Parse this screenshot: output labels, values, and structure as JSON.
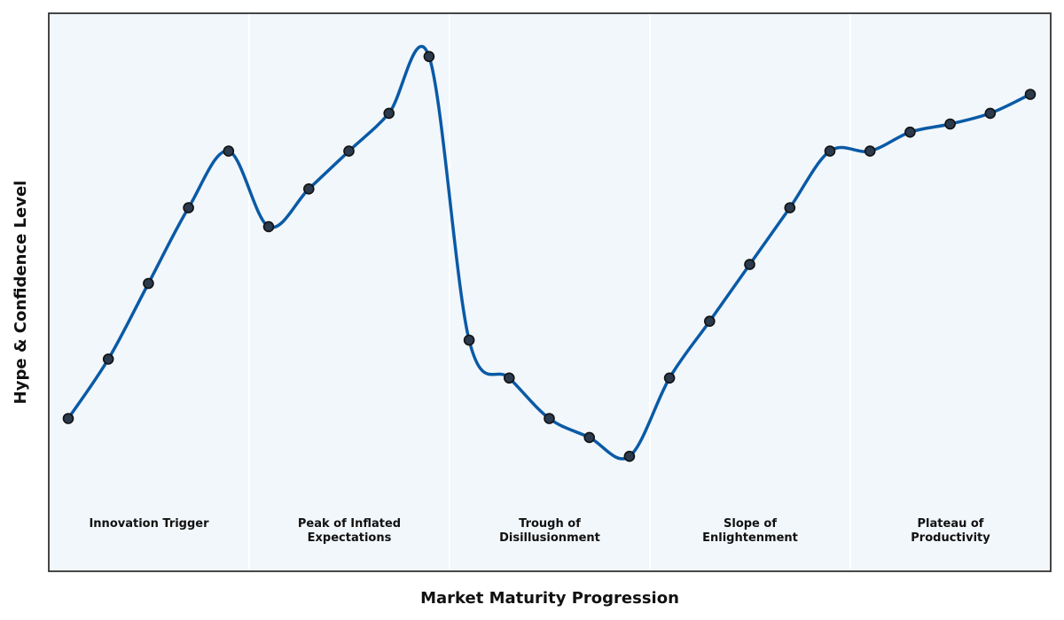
{
  "chart_data": {
    "type": "line",
    "xlabel": "Market Maturity Progression",
    "ylabel": "Hype & Confidence Level",
    "ylim": [
      0,
      100
    ],
    "grid": false,
    "x": [
      1,
      2,
      3,
      4,
      5,
      6,
      7,
      8,
      9,
      10,
      11,
      12,
      13,
      14,
      15,
      16,
      17,
      18,
      19,
      20,
      21,
      22,
      23,
      24,
      25
    ],
    "series": [
      {
        "values": [
          25,
          36,
          50,
          64,
          74.5,
          60.5,
          67.5,
          74.5,
          81.5,
          92,
          39.5,
          32.5,
          25,
          21.5,
          18,
          32.5,
          43,
          53.5,
          64,
          74.5,
          74.5,
          78,
          79.5,
          81.5,
          85
        ]
      }
    ],
    "phases": [
      {
        "label": "Innovation Trigger"
      },
      {
        "label": "Peak of Inflated Expectations"
      },
      {
        "label": "Trough of Disillusionment"
      },
      {
        "label": "Slope of Enlightenment"
      },
      {
        "label": "Plateau of Productivity"
      }
    ],
    "phase_label_lines": [
      [
        "Innovation Trigger"
      ],
      [
        "Peak of Inflated",
        "Expectations"
      ],
      [
        "Trough of",
        "Disillusionment"
      ],
      [
        "Slope of",
        "Enlightenment"
      ],
      [
        "Plateau of",
        "Productivity"
      ]
    ],
    "colors": {
      "line": "#0a5aa6",
      "marker_fill": "#2b3a4d",
      "marker_edge": "#111111",
      "plot_background": "#f2f7fb",
      "frame": "#333333",
      "phase_divider": "#ffffff"
    }
  }
}
